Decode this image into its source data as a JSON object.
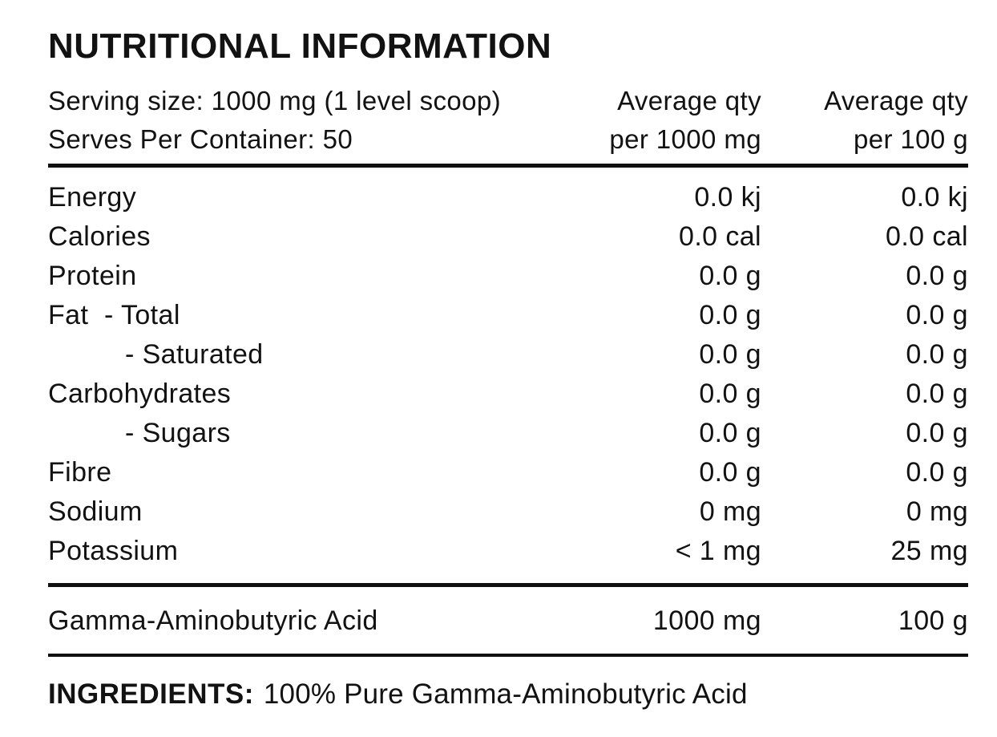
{
  "title": "NUTRITIONAL INFORMATION",
  "header": {
    "serving_size": "Serving size: 1000 mg (1 level scoop)",
    "serves_per_container": "Serves Per Container: 50",
    "qty_col_1": {
      "line1": "Average qty",
      "line2": "per 1000 mg"
    },
    "qty_col_2": {
      "line1": "Average qty",
      "line2": "per 100 g"
    }
  },
  "rows": [
    {
      "label": "Energy",
      "per_1000mg": "0.0 kj",
      "per_100g": "0.0 kj"
    },
    {
      "label": "Calories",
      "per_1000mg": "0.0 cal",
      "per_100g": "0.0 cal"
    },
    {
      "label": "Protein",
      "per_1000mg": "0.0 g",
      "per_100g": "0.0 g"
    },
    {
      "label": "Fat  - Total",
      "per_1000mg": "0.0 g",
      "per_100g": "0.0 g"
    },
    {
      "label": "- Saturated",
      "per_1000mg": "0.0 g",
      "per_100g": "0.0 g"
    },
    {
      "label": "Carbohydrates",
      "per_1000mg": "0.0 g",
      "per_100g": "0.0 g"
    },
    {
      "label": "- Sugars",
      "per_1000mg": "0.0 g",
      "per_100g": "0.0 g"
    },
    {
      "label": "Fibre",
      "per_1000mg": "0.0 g",
      "per_100g": "0.0 g"
    },
    {
      "label": "Sodium",
      "per_1000mg": "0 mg",
      "per_100g": "0 mg"
    },
    {
      "label": "Potassium",
      "per_1000mg": "< 1 mg",
      "per_100g": "25 mg"
    }
  ],
  "highlight_row": {
    "label": "Gamma-Aminobutyric Acid",
    "per_1000mg": "1000 mg",
    "per_100g": "100 g"
  },
  "ingredients": {
    "label": "INGREDIENTS:",
    "value": "100% Pure Gamma-Aminobutyric Acid"
  },
  "colors": {
    "text": "#121212",
    "rule": "#101010",
    "background": "#ffffff"
  }
}
